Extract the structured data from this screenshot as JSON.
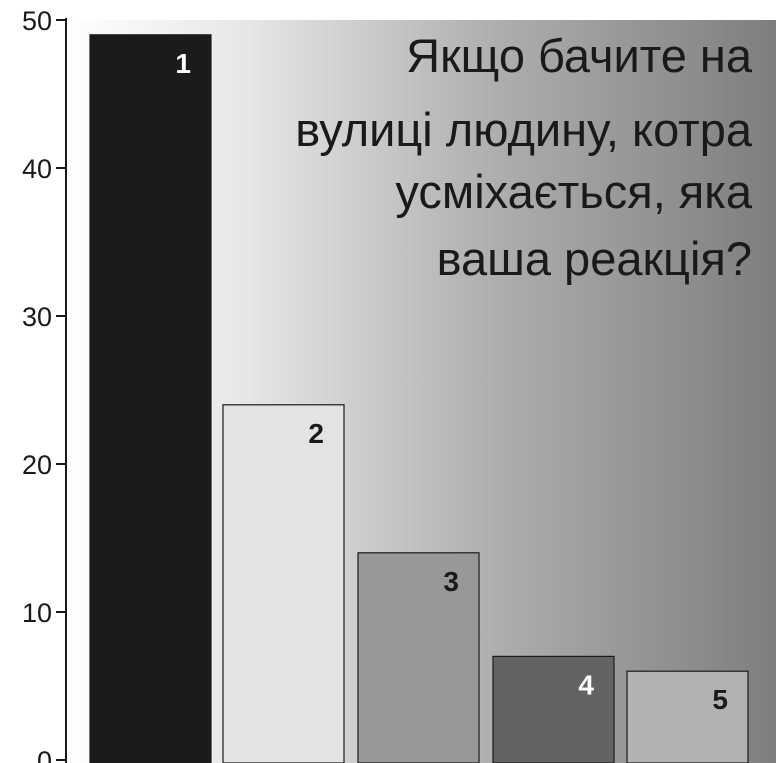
{
  "chart_data": {
    "type": "bar",
    "title_lines": [
      "Якщо бачите на",
      "вулиці людину, котра",
      "усміхається, яка",
      "ваша реакція?"
    ],
    "categories": [
      "1",
      "2",
      "3",
      "4",
      "5"
    ],
    "values": [
      49,
      24,
      14,
      7,
      6
    ],
    "bar_colors": [
      "#1c1a1b",
      "#e2e3e5",
      "#97989a",
      "#636365",
      "#b1b2b4"
    ],
    "label_colors": [
      "#ffffff",
      "#1a1a1a",
      "#1a1a1a",
      "#ffffff",
      "#1a1a1a"
    ],
    "yticks": [
      "0",
      "10",
      "20",
      "30",
      "40",
      "50"
    ],
    "ylim": [
      0,
      50
    ],
    "xlabel": "",
    "ylabel": "",
    "grid": false,
    "background": "gradient light-to-dark gray"
  }
}
